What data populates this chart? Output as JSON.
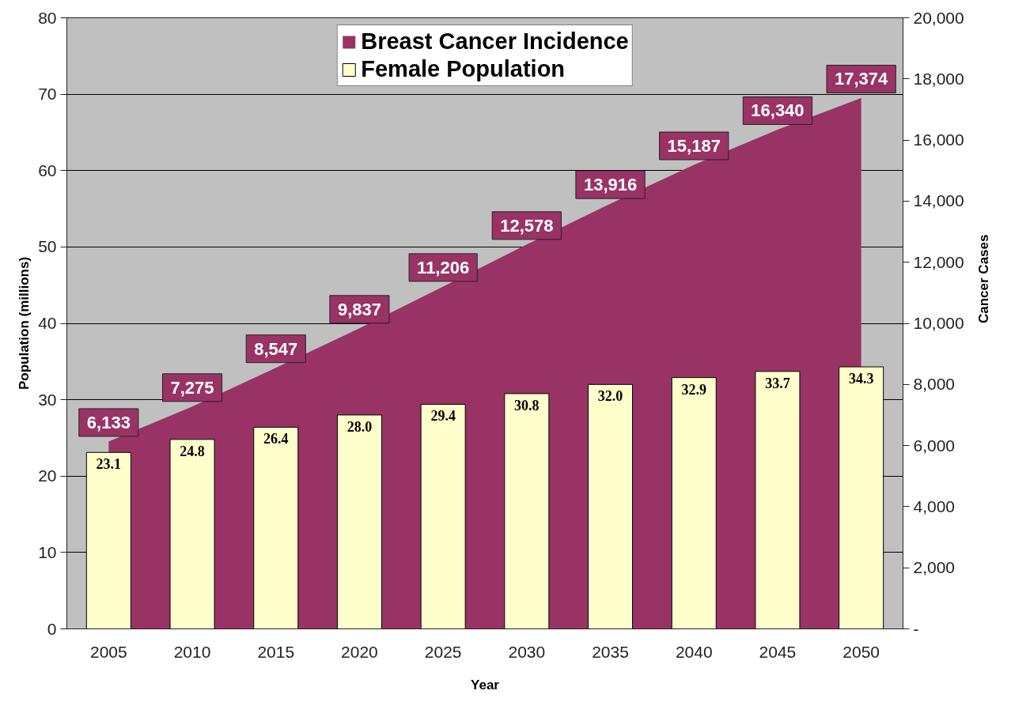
{
  "chart_data": {
    "type": "bar",
    "categories": [
      "2005",
      "2010",
      "2015",
      "2020",
      "2025",
      "2030",
      "2035",
      "2040",
      "2045",
      "2050"
    ],
    "xlabel": "Year",
    "ylabel": "Population (millions)",
    "y2label": "Cancer Cases",
    "ylim": [
      0,
      80
    ],
    "yticks": [
      0,
      10,
      20,
      30,
      40,
      50,
      60,
      70,
      80
    ],
    "y2lim": [
      0,
      20000
    ],
    "y2ticks": [
      {
        "value": 0,
        "label": "-"
      },
      {
        "value": 2000,
        "label": "2,000"
      },
      {
        "value": 4000,
        "label": "4,000"
      },
      {
        "value": 6000,
        "label": "6,000"
      },
      {
        "value": 8000,
        "label": "8,000"
      },
      {
        "value": 10000,
        "label": "10,000"
      },
      {
        "value": 12000,
        "label": "12,000"
      },
      {
        "value": 14000,
        "label": "14,000"
      },
      {
        "value": 16000,
        "label": "16,000"
      },
      {
        "value": 18000,
        "label": "18,000"
      },
      {
        "value": 20000,
        "label": "20,000"
      }
    ],
    "grid": "y",
    "legend": "top",
    "series": [
      {
        "name": "Breast Cancer Incidence",
        "type": "area",
        "axis": "y2",
        "color": "#993366",
        "values": [
          6133,
          7275,
          8547,
          9837,
          11206,
          12578,
          13916,
          15187,
          16340,
          17374
        ],
        "value_labels": [
          "6,133",
          "7,275",
          "8,547",
          "9,837",
          "11,206",
          "12,578",
          "13,916",
          "15,187",
          "16,340",
          "17,374"
        ]
      },
      {
        "name": "Female Population",
        "color": "#ffffcc",
        "values": [
          23.1,
          24.8,
          26.4,
          28.0,
          29.4,
          30.8,
          32.0,
          32.9,
          33.7,
          34.3
        ],
        "value_labels": [
          "23.1",
          "24.8",
          "26.4",
          "28.0",
          "29.4",
          "30.8",
          "32.0",
          "32.9",
          "33.7",
          "34.3"
        ]
      }
    ]
  }
}
